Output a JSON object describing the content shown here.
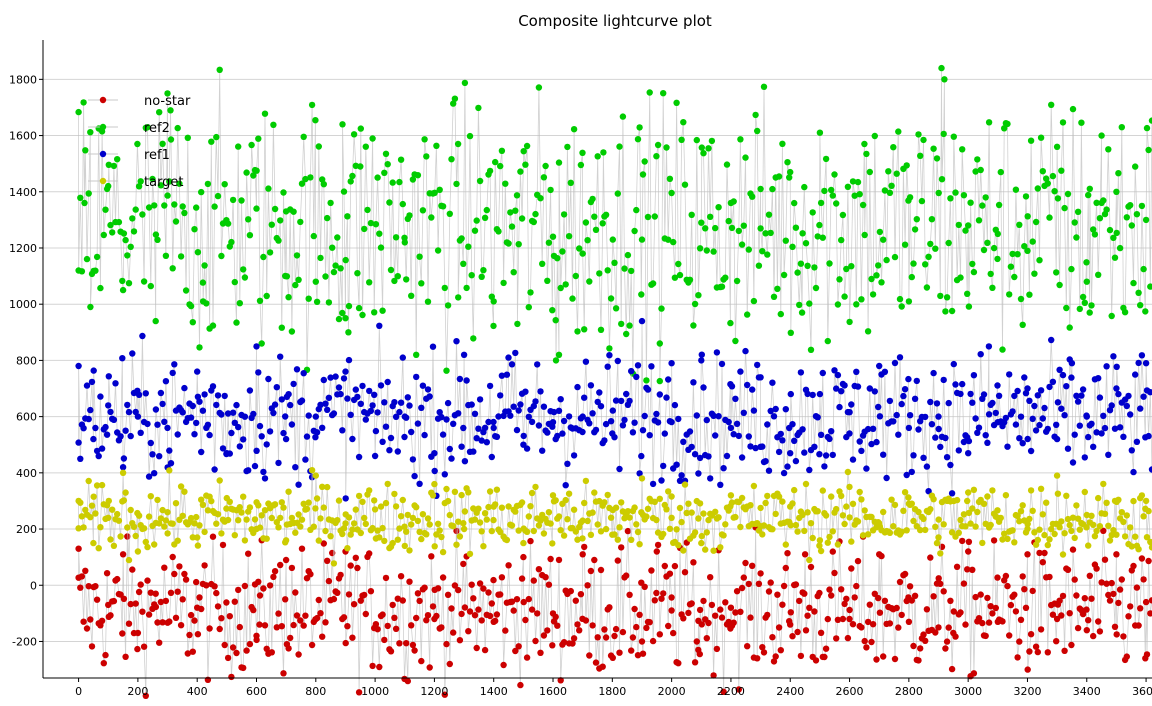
{
  "chart_data": {
    "type": "scatter",
    "title": "Composite lightcurve plot",
    "xlabel": "",
    "ylabel": "",
    "xlim": [
      -120,
      3620
    ],
    "ylim": [
      -330,
      1940
    ],
    "x_ticks": [
      0,
      200,
      400,
      600,
      800,
      1000,
      1200,
      1400,
      1600,
      1800,
      2000,
      2200,
      2400,
      2600,
      2800,
      3000,
      3200,
      3400,
      3600
    ],
    "y_ticks": [
      -200,
      0,
      200,
      400,
      600,
      800,
      1000,
      1200,
      1400,
      1600,
      1800
    ],
    "grid": "horizontal",
    "connecting_lines": true,
    "legend_position": "top-left",
    "x_range": [
      0,
      3620
    ],
    "series": [
      {
        "name": "no-star",
        "color": "#cc0000",
        "points": [
          [
            0,
            130
          ],
          [
            100,
            -70
          ],
          [
            150,
            110
          ],
          [
            200,
            -170
          ],
          [
            260,
            -30
          ],
          [
            400,
            -80
          ],
          [
            600,
            -180
          ],
          [
            610,
            -140
          ],
          [
            700,
            90
          ],
          [
            900,
            120
          ],
          [
            1000,
            -150
          ],
          [
            1200,
            -120
          ],
          [
            1400,
            -130
          ],
          [
            1500,
            100
          ],
          [
            1600,
            -100
          ],
          [
            1700,
            110
          ],
          [
            1900,
            -200
          ],
          [
            1950,
            120
          ],
          [
            2000,
            -90
          ],
          [
            2090,
            -230
          ],
          [
            2095,
            -245
          ],
          [
            2200,
            -80
          ],
          [
            2400,
            -140
          ],
          [
            2450,
            110
          ],
          [
            2600,
            -120
          ],
          [
            2700,
            110
          ],
          [
            2800,
            -130
          ],
          [
            2900,
            -150
          ],
          [
            2950,
            -170
          ],
          [
            3000,
            120
          ],
          [
            3100,
            -130
          ],
          [
            3200,
            110
          ],
          [
            3300,
            -120
          ],
          [
            3400,
            -160
          ],
          [
            3500,
            110
          ],
          [
            3600,
            -60
          ]
        ]
      },
      {
        "name": "ref2",
        "color": "#00cc00",
        "points": [
          [
            0,
            1120
          ],
          [
            20,
            1360
          ],
          [
            40,
            990
          ],
          [
            100,
            1420
          ],
          [
            150,
            1050
          ],
          [
            260,
            940
          ],
          [
            300,
            1750
          ],
          [
            310,
            1690
          ],
          [
            420,
            1010
          ],
          [
            600,
            1340
          ],
          [
            700,
            1330
          ],
          [
            800,
            1080
          ],
          [
            890,
            1640
          ],
          [
            900,
            950
          ],
          [
            910,
            900
          ],
          [
            950,
            1490
          ],
          [
            1100,
            1220
          ],
          [
            1280,
            1570
          ],
          [
            1400,
            1010
          ],
          [
            1480,
            930
          ],
          [
            1600,
            1240
          ],
          [
            1610,
            800
          ],
          [
            1620,
            820
          ],
          [
            1700,
            1180
          ],
          [
            1770,
            1540
          ],
          [
            1900,
            1230
          ],
          [
            1960,
            860
          ],
          [
            2100,
            1290
          ],
          [
            2200,
            1360
          ],
          [
            2300,
            1410
          ],
          [
            2400,
            1470
          ],
          [
            2440,
            970
          ],
          [
            2500,
            1610
          ],
          [
            2650,
            1570
          ],
          [
            2800,
            1010
          ],
          [
            2910,
            1840
          ],
          [
            2920,
            1800
          ],
          [
            3000,
            1280
          ],
          [
            3100,
            1250
          ],
          [
            3200,
            1190
          ],
          [
            3300,
            1560
          ],
          [
            3400,
            1080
          ],
          [
            3410,
            970
          ],
          [
            3450,
            1600
          ],
          [
            3500,
            1400
          ],
          [
            3600,
            1300
          ]
        ]
      },
      {
        "name": "ref1",
        "color": "#0000cc",
        "points": [
          [
            0,
            780
          ],
          [
            50,
            520
          ],
          [
            100,
            640
          ],
          [
            150,
            420
          ],
          [
            200,
            600
          ],
          [
            300,
            560
          ],
          [
            400,
            760
          ],
          [
            500,
            470
          ],
          [
            600,
            850
          ],
          [
            700,
            520
          ],
          [
            800,
            600
          ],
          [
            900,
            760
          ],
          [
            1000,
            460
          ],
          [
            1100,
            600
          ],
          [
            1200,
            470
          ],
          [
            1300,
            820
          ],
          [
            1400,
            560
          ],
          [
            1450,
            810
          ],
          [
            1500,
            500
          ],
          [
            1600,
            580
          ],
          [
            1700,
            600
          ],
          [
            1800,
            540
          ],
          [
            1900,
            940
          ],
          [
            2000,
            790
          ],
          [
            2100,
            800
          ],
          [
            2200,
            560
          ],
          [
            2300,
            740
          ],
          [
            2400,
            470
          ],
          [
            2500,
            680
          ],
          [
            2600,
            540
          ],
          [
            2700,
            780
          ],
          [
            2800,
            560
          ],
          [
            2900,
            600
          ],
          [
            3000,
            470
          ],
          [
            3070,
            850
          ],
          [
            3100,
            580
          ],
          [
            3200,
            700
          ],
          [
            3300,
            520
          ],
          [
            3350,
            790
          ],
          [
            3400,
            600
          ],
          [
            3500,
            700
          ],
          [
            3600,
            790
          ]
        ]
      },
      {
        "name": "target",
        "color": "#cccc00",
        "points": [
          [
            0,
            300
          ],
          [
            50,
            150
          ],
          [
            100,
            240
          ],
          [
            150,
            400
          ],
          [
            200,
            120
          ],
          [
            300,
            260
          ],
          [
            400,
            170
          ],
          [
            500,
            310
          ],
          [
            600,
            200
          ],
          [
            700,
            160
          ],
          [
            800,
            390
          ],
          [
            900,
            220
          ],
          [
            1000,
            270
          ],
          [
            1100,
            140
          ],
          [
            1200,
            360
          ],
          [
            1300,
            200
          ],
          [
            1400,
            280
          ],
          [
            1500,
            150
          ],
          [
            1600,
            320
          ],
          [
            1700,
            230
          ],
          [
            1800,
            180
          ],
          [
            1900,
            380
          ],
          [
            2000,
            240
          ],
          [
            2100,
            150
          ],
          [
            2200,
            320
          ],
          [
            2300,
            210
          ],
          [
            2400,
            280
          ],
          [
            2500,
            160
          ],
          [
            2600,
            350
          ],
          [
            2700,
            220
          ],
          [
            2800,
            290
          ],
          [
            2900,
            170
          ],
          [
            3000,
            330
          ],
          [
            3100,
            240
          ],
          [
            3200,
            200
          ],
          [
            3300,
            390
          ],
          [
            3400,
            250
          ],
          [
            3500,
            180
          ],
          [
            3600,
            300
          ]
        ]
      }
    ]
  }
}
